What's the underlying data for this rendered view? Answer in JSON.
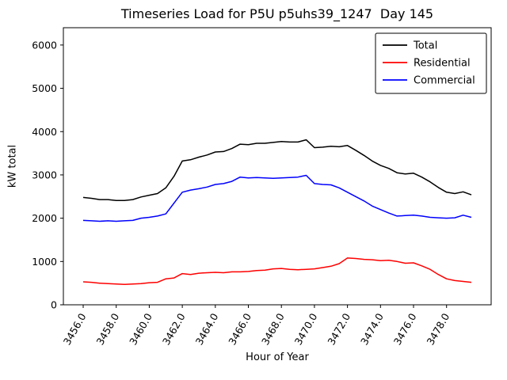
{
  "figure": {
    "title": "Timeseries Load for P5U p5uhs39_1247  Day 145",
    "xlabel": "Hour of Year",
    "ylabel": "kW total"
  },
  "chart_data": {
    "type": "line",
    "title": "Timeseries Load for P5U p5uhs39_1247  Day 145",
    "xlabel": "Hour of Year",
    "ylabel": "kW total",
    "grid": false,
    "legend_position": "upper right",
    "xlim": [
      3454.8,
      3480.7
    ],
    "ylim": [
      0,
      6400
    ],
    "yticks": [
      0,
      1000,
      2000,
      3000,
      4000,
      5000,
      6000
    ],
    "ytick_labels": [
      "0",
      "1000",
      "2000",
      "3000",
      "4000",
      "5000",
      "6000"
    ],
    "xticks": [
      3456,
      3458,
      3460,
      3462,
      3464,
      3466,
      3468,
      3470,
      3472,
      3474,
      3476,
      3478
    ],
    "xtick_labels": [
      "3456.0",
      "3458.0",
      "3460.0",
      "3462.0",
      "3464.0",
      "3466.0",
      "3468.0",
      "3470.0",
      "3472.0",
      "3474.0",
      "3476.0",
      "3478.0"
    ],
    "x": [
      3456.0,
      3456.5,
      3457.0,
      3457.5,
      3458.0,
      3458.5,
      3459.0,
      3459.5,
      3460.0,
      3460.5,
      3461.0,
      3461.5,
      3462.0,
      3462.5,
      3463.0,
      3463.5,
      3464.0,
      3464.5,
      3465.0,
      3465.5,
      3466.0,
      3466.5,
      3467.0,
      3467.5,
      3468.0,
      3468.5,
      3469.0,
      3469.5,
      3470.0,
      3470.5,
      3471.0,
      3471.5,
      3472.0,
      3472.5,
      3473.0,
      3473.5,
      3474.0,
      3474.5,
      3475.0,
      3475.5,
      3476.0,
      3476.5,
      3477.0,
      3477.5,
      3478.0,
      3478.5,
      3479.0,
      3479.5
    ],
    "series": [
      {
        "name": "Total",
        "color": "#000000",
        "values": [
          2480,
          2460,
          2430,
          2430,
          2410,
          2410,
          2430,
          2490,
          2530,
          2570,
          2700,
          2970,
          3320,
          3350,
          3410,
          3460,
          3530,
          3540,
          3610,
          3710,
          3700,
          3730,
          3730,
          3750,
          3770,
          3760,
          3760,
          3810,
          3630,
          3640,
          3660,
          3650,
          3680,
          3570,
          3450,
          3320,
          3220,
          3150,
          3050,
          3020,
          3040,
          2950,
          2840,
          2710,
          2600,
          2570,
          2610,
          2540
        ]
      },
      {
        "name": "Residential",
        "color": "#ff0000",
        "values": [
          530,
          520,
          500,
          490,
          480,
          470,
          480,
          490,
          510,
          520,
          600,
          620,
          720,
          700,
          730,
          740,
          750,
          740,
          760,
          760,
          770,
          790,
          800,
          830,
          840,
          820,
          810,
          820,
          830,
          860,
          890,
          950,
          1080,
          1070,
          1050,
          1040,
          1020,
          1030,
          1000,
          960,
          970,
          900,
          820,
          700,
          600,
          560,
          540,
          520
        ]
      },
      {
        "name": "Commercial",
        "color": "#0000ff",
        "values": [
          1950,
          1940,
          1930,
          1940,
          1930,
          1940,
          1950,
          2000,
          2020,
          2050,
          2100,
          2350,
          2600,
          2650,
          2680,
          2720,
          2780,
          2800,
          2850,
          2950,
          2930,
          2940,
          2930,
          2920,
          2930,
          2940,
          2950,
          2990,
          2800,
          2780,
          2770,
          2700,
          2600,
          2500,
          2400,
          2280,
          2200,
          2120,
          2050,
          2060,
          2070,
          2050,
          2020,
          2010,
          2000,
          2010,
          2070,
          2020
        ]
      }
    ]
  }
}
